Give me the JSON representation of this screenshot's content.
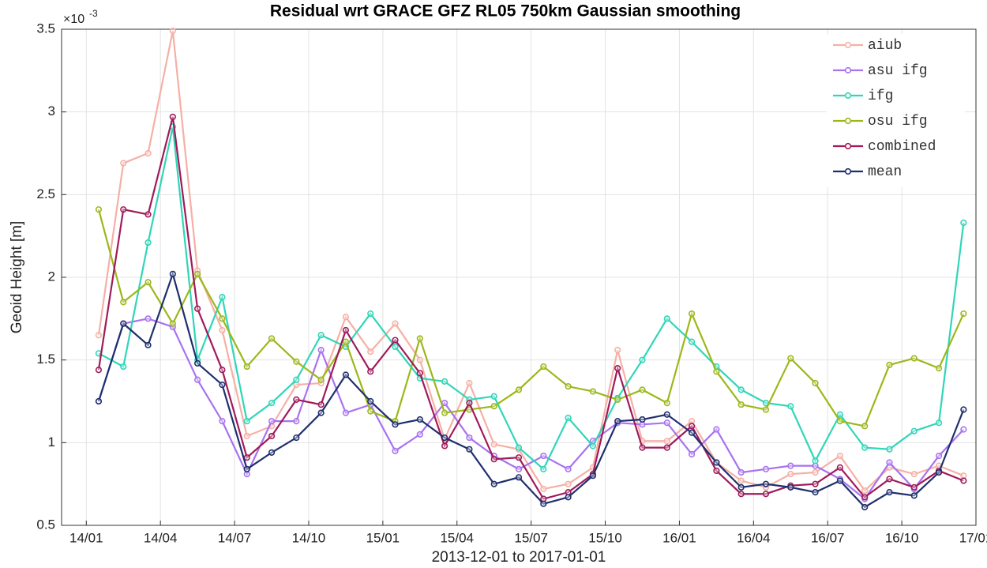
{
  "chart_data": {
    "type": "line",
    "title": "Residual wrt GRACE GFZ RL05 750km Gaussian smoothing",
    "y_label": "Geoid Height [m]",
    "x_label": "2013-12-01 to 2017-01-01",
    "y_multiplier": "×10",
    "y_exponent": "-3",
    "x": [
      "14/01",
      "14/02",
      "14/03",
      "14/04",
      "14/05",
      "14/06",
      "14/07",
      "14/08",
      "14/09",
      "14/10",
      "14/11",
      "14/12",
      "15/01",
      "15/02",
      "15/03",
      "15/04",
      "15/05",
      "15/06",
      "15/07",
      "15/08",
      "15/09",
      "15/10",
      "15/11",
      "15/12",
      "16/01",
      "16/02",
      "16/03",
      "16/04",
      "16/05",
      "16/06",
      "16/07",
      "16/08",
      "16/09",
      "16/10",
      "16/11",
      "16/12"
    ],
    "xticks": [
      "14/01",
      "14/04",
      "14/07",
      "14/10",
      "15/01",
      "15/04",
      "15/07",
      "15/10",
      "16/01",
      "16/04",
      "16/07",
      "16/10",
      "17/01"
    ],
    "ylim": [
      0.5,
      3.5
    ],
    "yticks": [
      0.5,
      1,
      1.5,
      2,
      2.5,
      3,
      3.5
    ],
    "grid": true,
    "legend": "top-right",
    "series": [
      {
        "name": "aiub",
        "color": "#f5b0a5",
        "values": [
          1.65,
          2.69,
          2.75,
          3.49,
          2.04,
          1.68,
          1.04,
          1.1,
          1.35,
          1.36,
          1.76,
          1.55,
          1.72,
          1.5,
          1.02,
          1.36,
          0.99,
          0.96,
          0.72,
          0.75,
          0.85,
          1.56,
          1.01,
          1.01,
          1.13,
          0.88,
          0.77,
          0.73,
          0.81,
          0.82,
          0.92,
          0.71,
          0.85,
          0.81,
          0.86,
          0.8
        ]
      },
      {
        "name": "asu ifg",
        "color": "#a872f0",
        "values": [
          1.25,
          1.72,
          1.75,
          1.7,
          1.38,
          1.13,
          0.81,
          1.13,
          1.13,
          1.56,
          1.18,
          1.23,
          0.95,
          1.05,
          1.24,
          1.03,
          0.92,
          0.84,
          0.92,
          0.84,
          1.01,
          1.12,
          1.11,
          1.12,
          0.93,
          1.08,
          0.82,
          0.84,
          0.86,
          0.86,
          0.78,
          0.66,
          0.88,
          0.72,
          0.92,
          1.08
        ]
      },
      {
        "name": "ifg",
        "color": "#2fd6b8",
        "values": [
          1.54,
          1.46,
          2.21,
          2.91,
          1.5,
          1.88,
          1.13,
          1.24,
          1.38,
          1.65,
          1.58,
          1.78,
          1.58,
          1.39,
          1.37,
          1.26,
          1.28,
          0.97,
          0.84,
          1.15,
          0.98,
          1.27,
          1.5,
          1.75,
          1.61,
          1.46,
          1.32,
          1.24,
          1.22,
          0.89,
          1.17,
          0.97,
          0.96,
          1.07,
          1.12,
          2.33
        ]
      },
      {
        "name": "osu ifg",
        "color": "#9bb81a",
        "values": [
          2.41,
          1.85,
          1.97,
          1.72,
          2.02,
          1.75,
          1.46,
          1.63,
          1.49,
          1.38,
          1.61,
          1.19,
          1.13,
          1.63,
          1.18,
          1.2,
          1.22,
          1.32,
          1.46,
          1.34,
          1.31,
          1.26,
          1.32,
          1.24,
          1.78,
          1.43,
          1.23,
          1.2,
          1.51,
          1.36,
          1.13,
          1.1,
          1.47,
          1.51,
          1.45,
          1.78
        ]
      },
      {
        "name": "combined",
        "color": "#a01a5a",
        "values": [
          1.44,
          2.41,
          2.38,
          2.97,
          1.81,
          1.44,
          0.91,
          1.04,
          1.26,
          1.23,
          1.68,
          1.43,
          1.62,
          1.42,
          0.98,
          1.24,
          0.9,
          0.91,
          0.66,
          0.7,
          0.81,
          1.45,
          0.97,
          0.97,
          1.1,
          0.83,
          0.69,
          0.69,
          0.74,
          0.75,
          0.85,
          0.67,
          0.78,
          0.73,
          0.83,
          0.77
        ]
      },
      {
        "name": "mean",
        "color": "#1f2f6e",
        "values": [
          1.25,
          1.72,
          1.59,
          2.02,
          1.48,
          1.35,
          0.84,
          0.94,
          1.03,
          1.18,
          1.41,
          1.25,
          1.11,
          1.14,
          1.03,
          0.96,
          0.75,
          0.79,
          0.63,
          0.67,
          0.8,
          1.13,
          1.14,
          1.17,
          1.06,
          0.88,
          0.73,
          0.75,
          0.73,
          0.7,
          0.77,
          0.61,
          0.7,
          0.68,
          0.82,
          1.2
        ]
      }
    ]
  }
}
